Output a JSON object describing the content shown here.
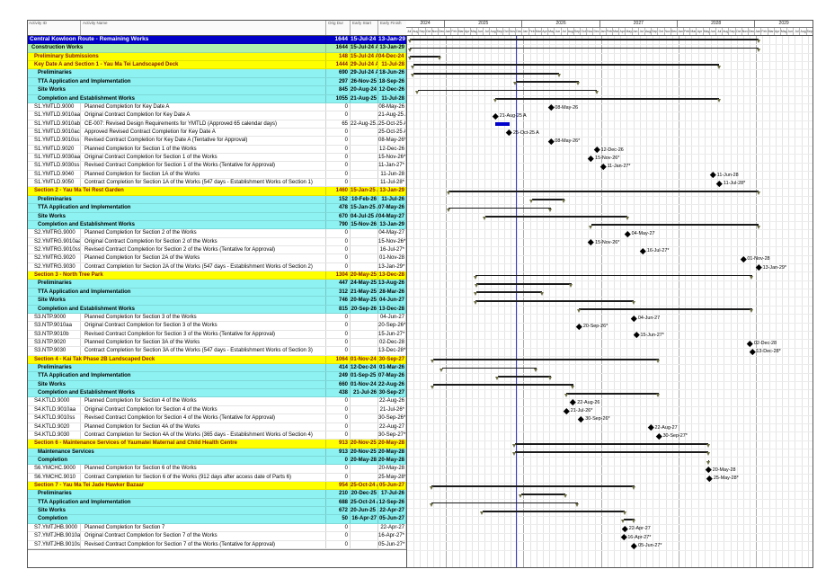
{
  "title": "Central Kowloon Route - Remaining Works",
  "table": {
    "columns": [
      "Activity ID",
      "Activity Name",
      "Orig Dur",
      "Early Start",
      "Early Finish"
    ]
  },
  "timeline": {
    "start_year": 2024,
    "start_month": "Jul",
    "total_months": 63,
    "years": [
      {
        "label": "2024",
        "months": 6
      },
      {
        "label": "2025",
        "months": 12
      },
      {
        "label": "2026",
        "months": 12
      },
      {
        "label": "2027",
        "months": 12
      },
      {
        "label": "2028",
        "months": 12
      },
      {
        "label": "2029",
        "months": 9
      }
    ],
    "month_abbrs": [
      "Jan",
      "Feb",
      "Mar",
      "Apr",
      "May",
      "Jun",
      "Jul",
      "Aug",
      "Sep",
      "Oct",
      "Nov",
      "Dec"
    ]
  },
  "gantt": {
    "data_date": "26-Nov-25"
  },
  "colors": {
    "project_blue": "#0000c8",
    "wbs_green": "#aef0ae",
    "section_yellow": "#ffff00",
    "section_text": "#8b1500",
    "group_cyan": "#8ef2f2",
    "task_blue": "#0000cc",
    "summary_dark": "#1a1a1a",
    "summary_triangle": "#6e6e46",
    "milestone_black": "#000000",
    "datadate_blue": "#3a3acc"
  },
  "rows": [
    {
      "type": "project",
      "id": "",
      "name": "Central Kowloon Route - Remaining Works",
      "dur": "1644",
      "start": "15-Jul-24 A",
      "finish": "13-Jan-29",
      "bar": "summary"
    },
    {
      "type": "wbs",
      "id": "",
      "name": "Construction Works",
      "dur": "1644",
      "start": "15-Jul-24 A",
      "finish": "13-Jan-29",
      "bar": "summary"
    },
    {
      "type": "section",
      "id": "",
      "name": "Preliminary Submissions",
      "dur": "148",
      "start": "15-Jul-24 A",
      "finish": "04-Dec-24 A",
      "bar": "summary"
    },
    {
      "type": "section",
      "id": "",
      "name": "Key Date A and Section 1 - Yau Ma Tei Landscaped Deck",
      "dur": "1444",
      "start": "29-Jul-24 A",
      "finish": "11-Jul-28",
      "bar": "summary"
    },
    {
      "type": "group",
      "id": "",
      "name": "Preliminaries",
      "dur": "690",
      "start": "29-Jul-24 A",
      "finish": "18-Jun-26",
      "bar": "summary"
    },
    {
      "type": "group",
      "id": "",
      "name": "TTA Application and Implementation",
      "dur": "297",
      "start": "26-Nov-25",
      "finish": "18-Sep-26",
      "bar": "summary"
    },
    {
      "type": "group",
      "id": "",
      "name": "Site Works",
      "dur": "845",
      "start": "20-Aug-24 A",
      "finish": "12-Dec-26",
      "bar": "summary"
    },
    {
      "type": "group",
      "id": "",
      "name": "Completion and Establishment Works",
      "dur": "1055",
      "start": "21-Aug-25 A",
      "finish": "11-Jul-28",
      "bar": "summary"
    },
    {
      "type": "activity",
      "id": "S1.YMTLD.9000",
      "name": "Planned Completion for Key Date A",
      "dur": "0",
      "start": "",
      "finish": "08-May-26",
      "bar": "milestone"
    },
    {
      "type": "activity",
      "id": "S1.YMTLD.9010aa",
      "name": "Original Contract Completion for Key Date A",
      "dur": "0",
      "start": "",
      "finish": "21-Aug-25 A",
      "bar": "milestone"
    },
    {
      "type": "activity",
      "id": "S1.YMTLD.9010ab",
      "name": "CE-007: Revised Design Requirements for YMTLD (Approved 65 calendar days)",
      "dur": "65",
      "start": "22-Aug-25 A",
      "finish": "25-Oct-25 A",
      "bar": "task"
    },
    {
      "type": "activity",
      "id": "S1.YMTLD.9010ac",
      "name": "Approved Revised Contract Completion for Key Date A",
      "dur": "0",
      "start": "",
      "finish": "25-Oct-25 A",
      "bar": "milestone"
    },
    {
      "type": "activity",
      "id": "S1.YMTLD.9010ss",
      "name": "Revised Contract Completion for Key Date A (Tentative for Approval)",
      "dur": "0",
      "start": "",
      "finish": "08-May-26*",
      "bar": "milestone"
    },
    {
      "type": "activity",
      "id": "S1.YMTLD.9020",
      "name": "Planned Completion for Section 1 of the Works",
      "dur": "0",
      "start": "",
      "finish": "12-Dec-26",
      "bar": "milestone"
    },
    {
      "type": "activity",
      "id": "S1.YMTLD.9030aa",
      "name": "Original Contract Completion for Section 1 of the Works",
      "dur": "0",
      "start": "",
      "finish": "15-Nov-26*",
      "bar": "milestone"
    },
    {
      "type": "activity",
      "id": "S1.YMTLD.9030ss",
      "name": "Revised Contract Completion for Section 1 of the Works (Tentative for Approval)",
      "dur": "0",
      "start": "",
      "finish": "11-Jan-27*",
      "bar": "milestone"
    },
    {
      "type": "activity",
      "id": "S1.YMTLD.9040",
      "name": "Planned Completion for Section 1A of the Works",
      "dur": "0",
      "start": "",
      "finish": "11-Jun-28",
      "bar": "milestone"
    },
    {
      "type": "activity",
      "id": "S1.YMTLD.9050",
      "name": "Contract Completion for Section 1A of the Works (547 days - Establishment Works of Section 1)",
      "dur": "0",
      "start": "",
      "finish": "11-Jul-28*",
      "bar": "milestone"
    },
    {
      "type": "section",
      "id": "",
      "name": "Section 2 - Yau Ma Tei Rest Garden",
      "dur": "1460",
      "start": "15-Jan-25 A",
      "finish": "13-Jan-29",
      "bar": "summary"
    },
    {
      "type": "group",
      "id": "",
      "name": "Preliminaries",
      "dur": "152",
      "start": "10-Feb-26",
      "finish": "11-Jul-26",
      "bar": "summary"
    },
    {
      "type": "group",
      "id": "",
      "name": "TTA Application and Implementation",
      "dur": "478",
      "start": "15-Jan-25 A",
      "finish": "07-May-26",
      "bar": "summary"
    },
    {
      "type": "group",
      "id": "",
      "name": "Site Works",
      "dur": "670",
      "start": "04-Jul-25 A",
      "finish": "04-May-27",
      "bar": "summary"
    },
    {
      "type": "group",
      "id": "",
      "name": "Completion and Establishment Works",
      "dur": "790",
      "start": "15-Nov-26",
      "finish": "13-Jan-29",
      "bar": "summary"
    },
    {
      "type": "activity",
      "id": "S2.YMTRG.9000",
      "name": "Planned Completion for Section 2 of the Works",
      "dur": "0",
      "start": "",
      "finish": "04-May-27",
      "bar": "milestone"
    },
    {
      "type": "activity",
      "id": "S2.YMTRG.9010aa",
      "name": "Original Contract Completion for Section 2 of the Works",
      "dur": "0",
      "start": "",
      "finish": "15-Nov-26*",
      "bar": "milestone"
    },
    {
      "type": "activity",
      "id": "S2.YMTRG.9010ss",
      "name": "Revised Contract Completion for Section 2 of the Works (Tentative for Approval)",
      "dur": "0",
      "start": "",
      "finish": "16-Jul-27*",
      "bar": "milestone"
    },
    {
      "type": "activity",
      "id": "S2.YMTRG.9020",
      "name": "Planned Completion for Section 2A of the Works",
      "dur": "0",
      "start": "",
      "finish": "01-Nov-28",
      "bar": "milestone"
    },
    {
      "type": "activity",
      "id": "S2.YMTRG.9030",
      "name": "Contract Completion for Section 2A of the Works (547 days - Establishment Works of Section 2)",
      "dur": "0",
      "start": "",
      "finish": "13-Jan-29*",
      "bar": "milestone"
    },
    {
      "type": "section",
      "id": "",
      "name": "Section 3 - North Tree Park",
      "dur": "1304",
      "start": "20-May-25 A",
      "finish": "13-Dec-28",
      "bar": "summary"
    },
    {
      "type": "group",
      "id": "",
      "name": "Preliminaries",
      "dur": "447",
      "start": "24-May-25 A",
      "finish": "13-Aug-26",
      "bar": "summary"
    },
    {
      "type": "group",
      "id": "",
      "name": "TTA Application and Implementation",
      "dur": "312",
      "start": "21-May-25 A",
      "finish": "28-Mar-26",
      "bar": "summary"
    },
    {
      "type": "group",
      "id": "",
      "name": "Site Works",
      "dur": "746",
      "start": "20-May-25 A",
      "finish": "04-Jun-27",
      "bar": "summary"
    },
    {
      "type": "group",
      "id": "",
      "name": "Completion and Establishment Works",
      "dur": "815",
      "start": "20-Sep-26",
      "finish": "13-Dec-28",
      "bar": "summary"
    },
    {
      "type": "activity",
      "id": "S3.NTP.9000",
      "name": "Planned Completion for Section 3 of the Works",
      "dur": "0",
      "start": "",
      "finish": "04-Jun-27",
      "bar": "milestone"
    },
    {
      "type": "activity",
      "id": "S3.NTP.9010aa",
      "name": "Original Contract Completion for Section 3 of the Works",
      "dur": "0",
      "start": "",
      "finish": "20-Sep-26*",
      "bar": "milestone"
    },
    {
      "type": "activity",
      "id": "S3.NTP.9010b",
      "name": "Revised Contract Completion for Section 3 of the Works (Tentative for Approval)",
      "dur": "0",
      "start": "",
      "finish": "15-Jun-27*",
      "bar": "milestone"
    },
    {
      "type": "activity",
      "id": "S3.NTP.9020",
      "name": "Planned Completion for Section 3A of the Works",
      "dur": "0",
      "start": "",
      "finish": "02-Dec-28",
      "bar": "milestone"
    },
    {
      "type": "activity",
      "id": "S3.NTP.9030",
      "name": "Contract Completion for Section 3A of the Works (547 days - Establishment Works of Section 3)",
      "dur": "0",
      "start": "",
      "finish": "13-Dec-28*",
      "bar": "milestone"
    },
    {
      "type": "section",
      "id": "",
      "name": "Section 4 - Kai Tak Phase 2B Landscaped Deck",
      "dur": "1064",
      "start": "01-Nov-24 A",
      "finish": "30-Sep-27",
      "bar": "summary"
    },
    {
      "type": "group",
      "id": "",
      "name": "Preliminaries",
      "dur": "414",
      "start": "12-Dec-24 A",
      "finish": "01-Mar-26",
      "bar": "summary"
    },
    {
      "type": "group",
      "id": "",
      "name": "TTA Application and Implementation",
      "dur": "249",
      "start": "01-Sep-25 A",
      "finish": "07-May-26",
      "bar": "summary"
    },
    {
      "type": "group",
      "id": "",
      "name": "Site Works",
      "dur": "660",
      "start": "01-Nov-24 A",
      "finish": "22-Aug-26",
      "bar": "summary"
    },
    {
      "type": "group",
      "id": "",
      "name": "Completion and Establishment Works",
      "dur": "438",
      "start": "21-Jul-26",
      "finish": "30-Sep-27",
      "bar": "summary"
    },
    {
      "type": "activity",
      "id": "S4.KTLD.9000",
      "name": "Planned Completion for Section 4 of the Works",
      "dur": "0",
      "start": "",
      "finish": "22-Aug-26",
      "bar": "milestone"
    },
    {
      "type": "activity",
      "id": "S4.KTLD.9010aa",
      "name": "Original Contract Completion for Section 4 of the Works",
      "dur": "0",
      "start": "",
      "finish": "21-Jul-26*",
      "bar": "milestone"
    },
    {
      "type": "activity",
      "id": "S4.KTLD.9010ss",
      "name": "Revised Contract Completion for Section 4 of the Works (Tentative for Approval)",
      "dur": "0",
      "start": "",
      "finish": "30-Sep-26*",
      "bar": "milestone"
    },
    {
      "type": "activity",
      "id": "S4.KTLD.9020",
      "name": "Planned Completion for Section 4A of the Works",
      "dur": "0",
      "start": "",
      "finish": "22-Aug-27",
      "bar": "milestone"
    },
    {
      "type": "activity",
      "id": "S4.KTLD.9030",
      "name": "Contract Completion for Section 4A of the Works (365 days - Establishment Works of Section 4)",
      "dur": "0",
      "start": "",
      "finish": "30-Sep-27*",
      "bar": "milestone"
    },
    {
      "type": "section",
      "id": "",
      "name": "Section 6 - Maintenance Services of Yaumatei Maternal and Child Health Centre",
      "dur": "913",
      "start": "20-Nov-25 A",
      "finish": "20-May-28",
      "bar": "summary"
    },
    {
      "type": "group",
      "id": "",
      "name": "Maintenance Services",
      "dur": "913",
      "start": "20-Nov-25 A",
      "finish": "20-May-28",
      "bar": "summary"
    },
    {
      "type": "group",
      "id": "",
      "name": "Completion",
      "dur": "0",
      "start": "20-May-28",
      "finish": "20-May-28",
      "bar": "summary"
    },
    {
      "type": "activity",
      "id": "S6.YMCHC.9000",
      "name": "Planned Completion for Section 6 of the Works",
      "dur": "0",
      "start": "",
      "finish": "20-May-28",
      "bar": "milestone"
    },
    {
      "type": "activity",
      "id": "S6.YMCHC.9010",
      "name": "Contract Completion for Section 6 of the Works (912 days after access date of Parts 6)",
      "dur": "0",
      "start": "",
      "finish": "25-May-28*",
      "bar": "milestone"
    },
    {
      "type": "section",
      "id": "",
      "name": "Section 7 - Yau Ma Tei Jade Hawker Bazaar",
      "dur": "954",
      "start": "25-Oct-24 A",
      "finish": "05-Jun-27",
      "bar": "summary"
    },
    {
      "type": "group",
      "id": "",
      "name": "Preliminaries",
      "dur": "210",
      "start": "20-Dec-25",
      "finish": "17-Jul-26",
      "bar": "summary"
    },
    {
      "type": "group",
      "id": "",
      "name": "TTA Application and Implementation",
      "dur": "688",
      "start": "25-Oct-24 A",
      "finish": "12-Sep-26",
      "bar": "summary"
    },
    {
      "type": "group",
      "id": "",
      "name": "Site Works",
      "dur": "672",
      "start": "20-Jun-25 A",
      "finish": "22-Apr-27",
      "bar": "summary"
    },
    {
      "type": "group",
      "id": "",
      "name": "Completion",
      "dur": "50",
      "start": "16-Apr-27",
      "finish": "05-Jun-27",
      "bar": "summary"
    },
    {
      "type": "activity",
      "id": "S7.YMTJHB.9000",
      "name": "Planned Completion for Section 7",
      "dur": "0",
      "start": "",
      "finish": "22-Apr-27",
      "bar": "milestone"
    },
    {
      "type": "activity",
      "id": "S7.YMTJHB.9010aa",
      "name": "Original Contract Completion for Section 7 of the Works",
      "dur": "0",
      "start": "",
      "finish": "16-Apr-27*",
      "bar": "milestone"
    },
    {
      "type": "activity",
      "id": "S7.YMTJHB.9010ss",
      "name": "Revised Contract Completion for Section 7 of the Works (Tentative for Approval)",
      "dur": "0",
      "start": "",
      "finish": "05-Jun-27*",
      "bar": "milestone"
    }
  ]
}
